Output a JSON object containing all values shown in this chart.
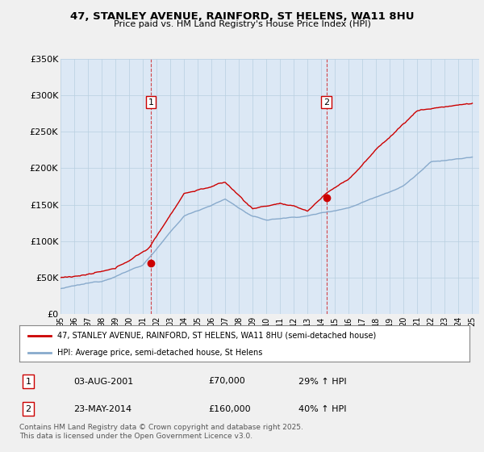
{
  "title_line1": "47, STANLEY AVENUE, RAINFORD, ST HELENS, WA11 8HU",
  "title_line2": "Price paid vs. HM Land Registry's House Price Index (HPI)",
  "ylim": [
    0,
    350000
  ],
  "yticks": [
    0,
    50000,
    100000,
    150000,
    200000,
    250000,
    300000,
    350000
  ],
  "ytick_labels": [
    "£0",
    "£50K",
    "£100K",
    "£150K",
    "£200K",
    "£250K",
    "£300K",
    "£350K"
  ],
  "sale1_date_label": "03-AUG-2001",
  "sale1_price": 70000,
  "sale1_price_label": "£70,000",
  "sale1_hpi_label": "29% ↑ HPI",
  "sale1_year": 2001.58,
  "sale2_date_label": "23-MAY-2014",
  "sale2_price": 160000,
  "sale2_price_label": "£160,000",
  "sale2_hpi_label": "40% ↑ HPI",
  "sale2_year": 2014.38,
  "property_color": "#cc0000",
  "hpi_color": "#88aacc",
  "legend_property": "47, STANLEY AVENUE, RAINFORD, ST HELENS, WA11 8HU (semi-detached house)",
  "legend_hpi": "HPI: Average price, semi-detached house, St Helens",
  "footnote": "Contains HM Land Registry data © Crown copyright and database right 2025.\nThis data is licensed under the Open Government Licence v3.0.",
  "bg_color": "#f0f0f0",
  "plot_bg_color": "#dce8f5"
}
